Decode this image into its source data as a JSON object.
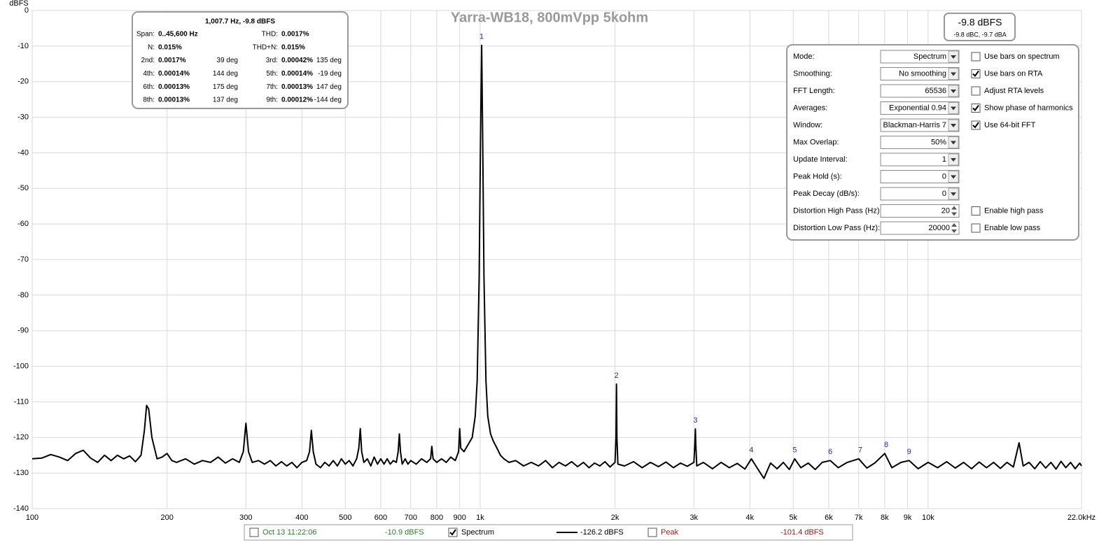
{
  "chart_data": {
    "type": "line",
    "title": "Yarra-WB18, 800mVpp 5kohm",
    "y_label": "dBFS",
    "xscale": "log",
    "xlim": [
      100,
      22000
    ],
    "ylim": [
      -140,
      0
    ],
    "grid": true,
    "xticks": [
      100,
      200,
      300,
      400,
      500,
      600,
      700,
      800,
      900,
      {
        "value": 1000,
        "label": "1k"
      },
      {
        "value": 2000,
        "label": "2k"
      },
      {
        "value": 3000,
        "label": "3k"
      },
      {
        "value": 4000,
        "label": "4k"
      },
      {
        "value": 5000,
        "label": "5k"
      },
      {
        "value": 6000,
        "label": "6k"
      },
      {
        "value": 7000,
        "label": "7k"
      },
      {
        "value": 8000,
        "label": "8k"
      },
      {
        "value": 9000,
        "label": "9k"
      },
      {
        "value": 10000,
        "label": "10k"
      },
      {
        "value": 22000,
        "label": "22.0kHz"
      }
    ],
    "yticks": [
      0,
      -10,
      -20,
      -30,
      -40,
      -50,
      -60,
      -70,
      -80,
      -90,
      -100,
      -110,
      -120,
      -130,
      -140
    ],
    "x": [
      100,
      105,
      110,
      115,
      120,
      125,
      130,
      135,
      140,
      145,
      150,
      155,
      160,
      165,
      170,
      175,
      178,
      180,
      182,
      185,
      190,
      195,
      200,
      205,
      210,
      220,
      230,
      240,
      250,
      260,
      270,
      280,
      290,
      296,
      300,
      304,
      310,
      320,
      330,
      340,
      350,
      360,
      370,
      380,
      390,
      400,
      410,
      416,
      420,
      424,
      430,
      440,
      450,
      460,
      470,
      480,
      490,
      500,
      510,
      520,
      530,
      536,
      540,
      544,
      550,
      560,
      570,
      580,
      590,
      600,
      610,
      620,
      630,
      640,
      650,
      656,
      660,
      664,
      670,
      680,
      690,
      700,
      720,
      740,
      760,
      775,
      780,
      785,
      800,
      820,
      840,
      860,
      880,
      895,
      900,
      905,
      920,
      940,
      960,
      975,
      985,
      995,
      1002,
      1007.7,
      1013,
      1020,
      1030,
      1040,
      1055,
      1070,
      1090,
      1110,
      1130,
      1160,
      1200,
      1250,
      1300,
      1350,
      1400,
      1450,
      1500,
      1550,
      1600,
      1650,
      1700,
      1750,
      1800,
      1850,
      1900,
      1950,
      2000,
      2010,
      2015,
      2020,
      2030,
      2100,
      2200,
      2300,
      2400,
      2500,
      2600,
      2700,
      2800,
      2900,
      3000,
      3015,
      3023,
      3030,
      3045,
      3150,
      3300,
      3450,
      3600,
      3750,
      3900,
      4031,
      4150,
      4300,
      4450,
      4600,
      4750,
      4900,
      5038,
      5200,
      5400,
      5600,
      5800,
      6046,
      6300,
      6600,
      7000,
      7300,
      7600,
      8000,
      8300,
      8700,
      9070,
      9500,
      10000,
      10500,
      11000,
      11500,
      12000,
      12500,
      13000,
      13500,
      14000,
      14500,
      15000,
      15500,
      15960,
      16300,
      16800,
      17300,
      17800,
      18300,
      18800,
      19300,
      19800,
      20300,
      20800,
      21300,
      21800,
      22000
    ],
    "series": [
      {
        "name": "Spectrum",
        "color": "#000000",
        "values": [
          -126,
          -125.8,
          -124.8,
          -125.5,
          -126.5,
          -124.5,
          -123.6,
          -125.8,
          -127,
          -125,
          -126.5,
          -125,
          -126,
          -125.2,
          -126.8,
          -125,
          -118,
          -111,
          -112,
          -120,
          -126,
          -125.5,
          -124.5,
          -126.5,
          -127,
          -126,
          -127.5,
          -126.5,
          -127,
          -125.5,
          -127.2,
          -126,
          -127,
          -124,
          -116,
          -124,
          -127,
          -126.5,
          -127.5,
          -126.5,
          -128,
          -126.8,
          -128,
          -127,
          -128.5,
          -127,
          -126.5,
          -124,
          -118,
          -124,
          -127.5,
          -128.5,
          -127,
          -128,
          -126.5,
          -128,
          -126,
          -127.5,
          -126.5,
          -128,
          -126,
          -123,
          -117.5,
          -124,
          -127,
          -126,
          -128,
          -125.5,
          -127.5,
          -126,
          -127.5,
          -126,
          -127.5,
          -126.5,
          -127,
          -124,
          -119,
          -124,
          -127.5,
          -126,
          -127.5,
          -126.5,
          -127.5,
          -126,
          -127,
          -126,
          -122.5,
          -126,
          -127,
          -126,
          -127,
          -125.5,
          -126.5,
          -124,
          -117.5,
          -123,
          -124,
          -122,
          -120,
          -114,
          -104,
          -75,
          -35,
          -9.8,
          -35,
          -75,
          -104,
          -114,
          -119,
          -121,
          -123,
          -125,
          -126,
          -127,
          -126.5,
          -128,
          -127,
          -128,
          -126.5,
          -128.5,
          -127,
          -128,
          -126.8,
          -128.2,
          -127,
          -128.5,
          -127.2,
          -128,
          -126.8,
          -128.3,
          -127,
          -120,
          -105,
          -120,
          -127.5,
          -128,
          -126.8,
          -128.5,
          -127,
          -128.2,
          -126.9,
          -128.5,
          -127.2,
          -128.1,
          -127,
          -122,
          -117.6,
          -122,
          -128,
          -127,
          -128.8,
          -127,
          -128.5,
          -127.3,
          -128.9,
          -126,
          -128.5,
          -131.5,
          -127.2,
          -128.8,
          -127,
          -129,
          -126,
          -128.5,
          -127.2,
          -129,
          -127,
          -126.5,
          -128.5,
          -127,
          -126,
          -128.6,
          -127.2,
          -124.5,
          -128.5,
          -127,
          -126.5,
          -128.8,
          -127,
          -128.5,
          -126.8,
          -128.6,
          -127,
          -128.8,
          -126.9,
          -128.5,
          -127,
          -128.7,
          -127,
          -128.3,
          -121.5,
          -128,
          -127,
          -128.8,
          -126.8,
          -128.6,
          -127,
          -128.9,
          -126.7,
          -128.5,
          -127,
          -128.8,
          -127.2,
          -128
        ]
      }
    ],
    "harmonics": [
      {
        "label": "1",
        "x": 1007.7,
        "y": -9.8
      },
      {
        "label": "2",
        "x": 2015,
        "y": -105
      },
      {
        "label": "3",
        "x": 3023,
        "y": -117.6
      },
      {
        "label": "4",
        "x": 4031,
        "y": -126
      },
      {
        "label": "5",
        "x": 5038,
        "y": -126
      },
      {
        "label": "6",
        "x": 6046,
        "y": -126.5
      },
      {
        "label": "7",
        "x": 7054,
        "y": -126
      },
      {
        "label": "8",
        "x": 8062,
        "y": -124.5
      },
      {
        "label": "9",
        "x": 9069,
        "y": -126.5
      }
    ]
  },
  "info_box": {
    "title": "1,007.7 Hz, -9.8 dBFS",
    "rows": [
      [
        {
          "label": "Span:",
          "value": "0..45,600 Hz"
        },
        {
          "label": "THD:",
          "value": "0.0017%"
        }
      ],
      [
        {
          "label": "N:",
          "value": "0.015%"
        },
        {
          "label": "THD+N:",
          "value": "0.015%"
        }
      ],
      [
        {
          "label": "2nd:",
          "value": "0.0017%",
          "phase": "39 deg"
        },
        {
          "label": "3rd:",
          "value": "0.00042%",
          "phase": "135 deg"
        }
      ],
      [
        {
          "label": "4th:",
          "value": "0.00014%",
          "phase": "144 deg"
        },
        {
          "label": "5th:",
          "value": "0.00014%",
          "phase": "-19 deg"
        }
      ],
      [
        {
          "label": "6th:",
          "value": "0.00013%",
          "phase": "175 deg"
        },
        {
          "label": "7th:",
          "value": "0.00013%",
          "phase": "147 deg"
        }
      ],
      [
        {
          "label": "8th:",
          "value": "0.00013%",
          "phase": "137 deg"
        },
        {
          "label": "9th:",
          "value": "0.00012%",
          "phase": "-144 deg"
        }
      ]
    ]
  },
  "level_box": {
    "main": "-9.8 dBFS",
    "sub": "-9.8 dBC, -9.7 dBA"
  },
  "settings": {
    "fields": [
      {
        "label": "Mode:",
        "value": "Spectrum",
        "control": "dropdown",
        "option": {
          "label": "Use bars on spectrum",
          "checked": false
        }
      },
      {
        "label": "Smoothing:",
        "value": "No  smoothing",
        "control": "dropdown",
        "option": {
          "label": "Use bars on RTA",
          "checked": true
        }
      },
      {
        "label": "FFT Length:",
        "value": "65536",
        "control": "dropdown",
        "option": {
          "label": "Adjust RTA levels",
          "checked": false
        }
      },
      {
        "label": "Averages:",
        "value": "Exponential 0.94",
        "control": "dropdown",
        "option": {
          "label": "Show phase of harmonics",
          "checked": true
        }
      },
      {
        "label": "Window:",
        "value": "Blackman-Harris 7",
        "control": "dropdown",
        "option": {
          "label": "Use 64-bit FFT",
          "checked": true
        }
      },
      {
        "label": "Max Overlap:",
        "value": "50%",
        "control": "dropdown"
      },
      {
        "label": "Update Interval:",
        "value": "1",
        "control": "dropdown"
      },
      {
        "label": "Peak Hold (s):",
        "value": "0",
        "control": "dropdown"
      },
      {
        "label": "Peak Decay (dB/s):",
        "value": "0",
        "control": "dropdown"
      },
      {
        "label": "Distortion High Pass (Hz):",
        "value": "20",
        "control": "spinner",
        "option": {
          "label": "Enable high pass",
          "checked": false
        }
      },
      {
        "label": "Distortion Low Pass (Hz):",
        "value": "20000",
        "control": "spinner",
        "option": {
          "label": "Enable low pass",
          "checked": false
        }
      }
    ]
  },
  "legend_bar": {
    "timestamp": "Oct 13 11:22:06",
    "timestamp_checked": false,
    "timestamp_value": "-10.9 dBFS",
    "spectrum_checked": true,
    "spectrum_value": "-126.2 dBFS",
    "peak_label": "Peak",
    "peak_checked": false,
    "peak_value": "-101.4 dBFS"
  }
}
